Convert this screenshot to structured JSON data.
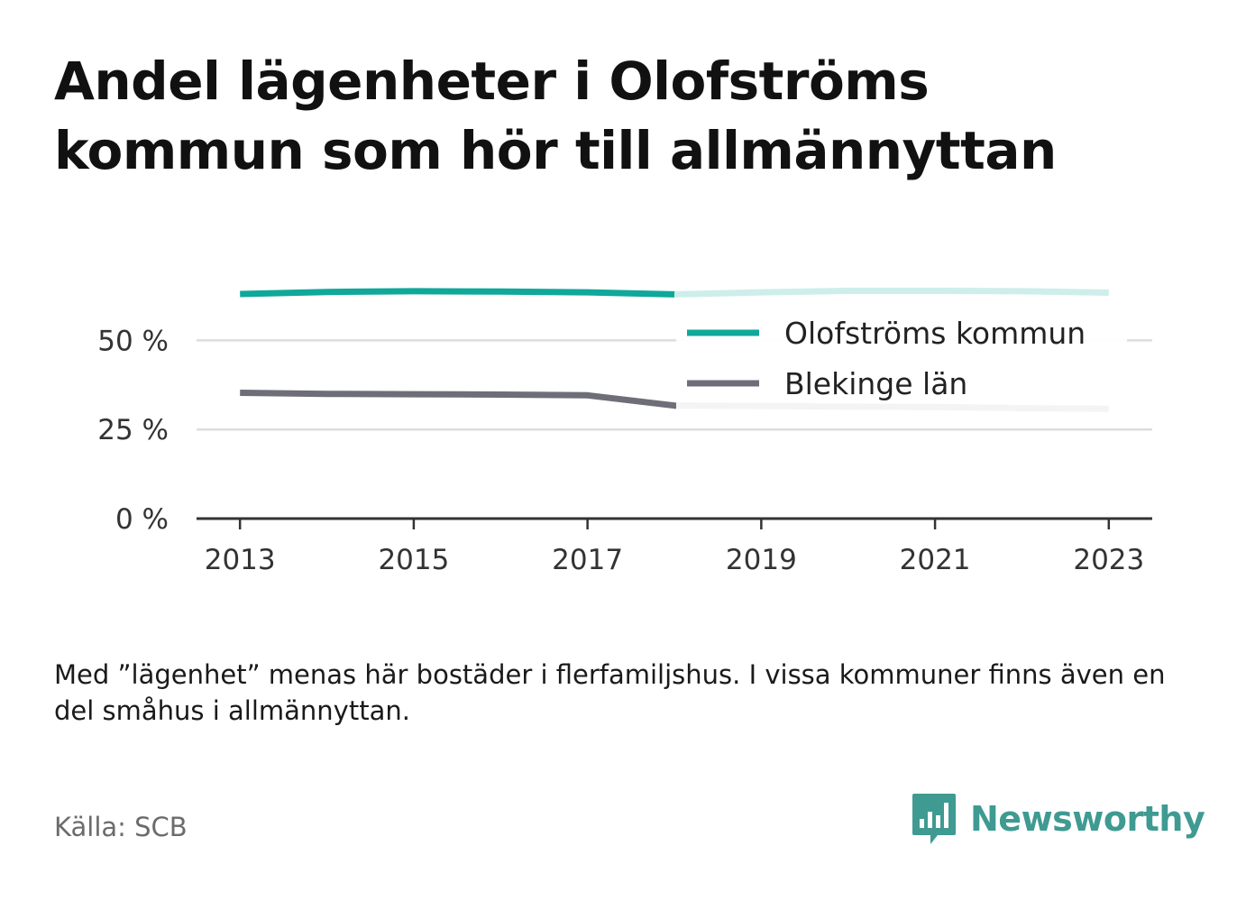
{
  "title": "Andel lägenheter i Olofströms kommun som hör till allmännyttan",
  "note": "Med ”lägenhet” menas här bostäder i flerfamiljshus. I vissa kommuner finns även en del småhus i allmännyttan.",
  "source": "Källa: SCB",
  "brand": {
    "name": "Newsworthy",
    "color": "#3f9a92"
  },
  "chart_data": {
    "type": "line",
    "x": [
      2013,
      2014,
      2015,
      2016,
      2017,
      2018,
      2019,
      2020,
      2021,
      2022,
      2023
    ],
    "xticks": [
      2013,
      2015,
      2017,
      2019,
      2021,
      2023
    ],
    "xtick_labels": [
      "2013",
      "2015",
      "2017",
      "2019",
      "2021",
      "2023"
    ],
    "yticks": [
      0,
      25,
      50
    ],
    "ytick_labels": [
      "0 %",
      "25 %",
      "50 %"
    ],
    "ylim": [
      0,
      62
    ],
    "xlim": [
      2012.5,
      2023.5
    ],
    "grid": true,
    "legend_position": "top-right",
    "series": [
      {
        "name": "Olofströms kommun",
        "color": "#0fa89a",
        "faded_color": "#cdeeea",
        "faded_from": 2018,
        "values": [
          63,
          63.6,
          63.8,
          63.7,
          63.5,
          62.9,
          63.5,
          63.9,
          63.9,
          63.8,
          63.4
        ]
      },
      {
        "name": "Blekinge län",
        "color": "#6e6e78",
        "values": [
          35.3,
          35.0,
          34.9,
          34.8,
          34.6,
          31.7,
          31.6,
          31.4,
          31.3,
          31.0,
          30.8
        ]
      }
    ]
  }
}
